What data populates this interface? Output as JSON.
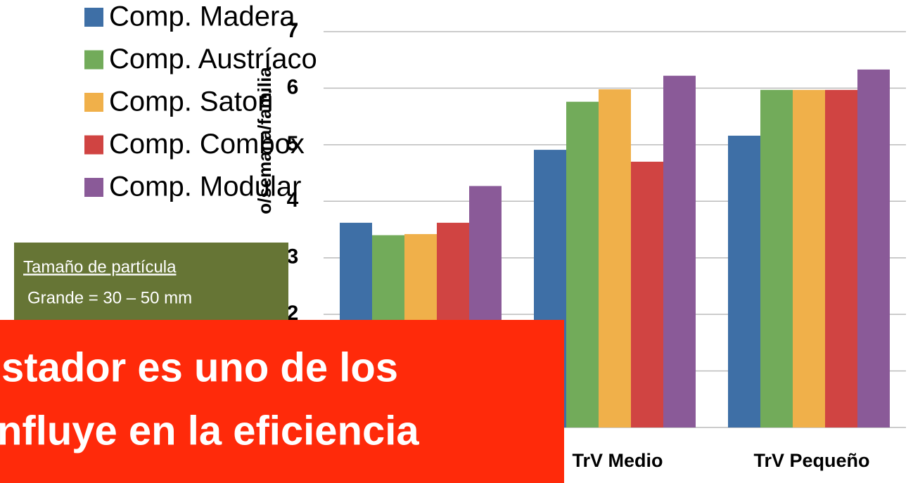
{
  "chart_data": {
    "type": "bar",
    "y_label": "o/semana/familia",
    "categories": [
      null,
      "TrV Medio",
      "TrV Pequeño"
    ],
    "series": [
      {
        "name": "Comp. Madera",
        "color": "#3e6fa6",
        "values": [
          3.62,
          4.91,
          5.16
        ]
      },
      {
        "name": "Comp. Austríaco",
        "color": "#72ab5a",
        "values": [
          3.4,
          5.76,
          5.97
        ]
      },
      {
        "name": "Comp. Satori",
        "color": "#f0b04a",
        "values": [
          3.42,
          5.98,
          5.97
        ]
      },
      {
        "name": "Comp. Combox",
        "color": "#d04442",
        "values": [
          3.62,
          4.7,
          5.97
        ]
      },
      {
        "name": "Comp. Modular",
        "color": "#8a5a98",
        "values": [
          4.27,
          6.22,
          6.33
        ]
      }
    ],
    "ylim": [
      0,
      7
    ],
    "yticks": [
      0,
      1,
      2,
      3,
      4,
      5,
      6,
      7
    ],
    "grid": true,
    "legend": "top-left"
  },
  "note": {
    "title": "Tamaño de partícula",
    "text": "Grande = 30 – 50 mm"
  },
  "banner": {
    "lines": [
      "stador es uno de los",
      "nfluye en la eficiencia"
    ]
  }
}
